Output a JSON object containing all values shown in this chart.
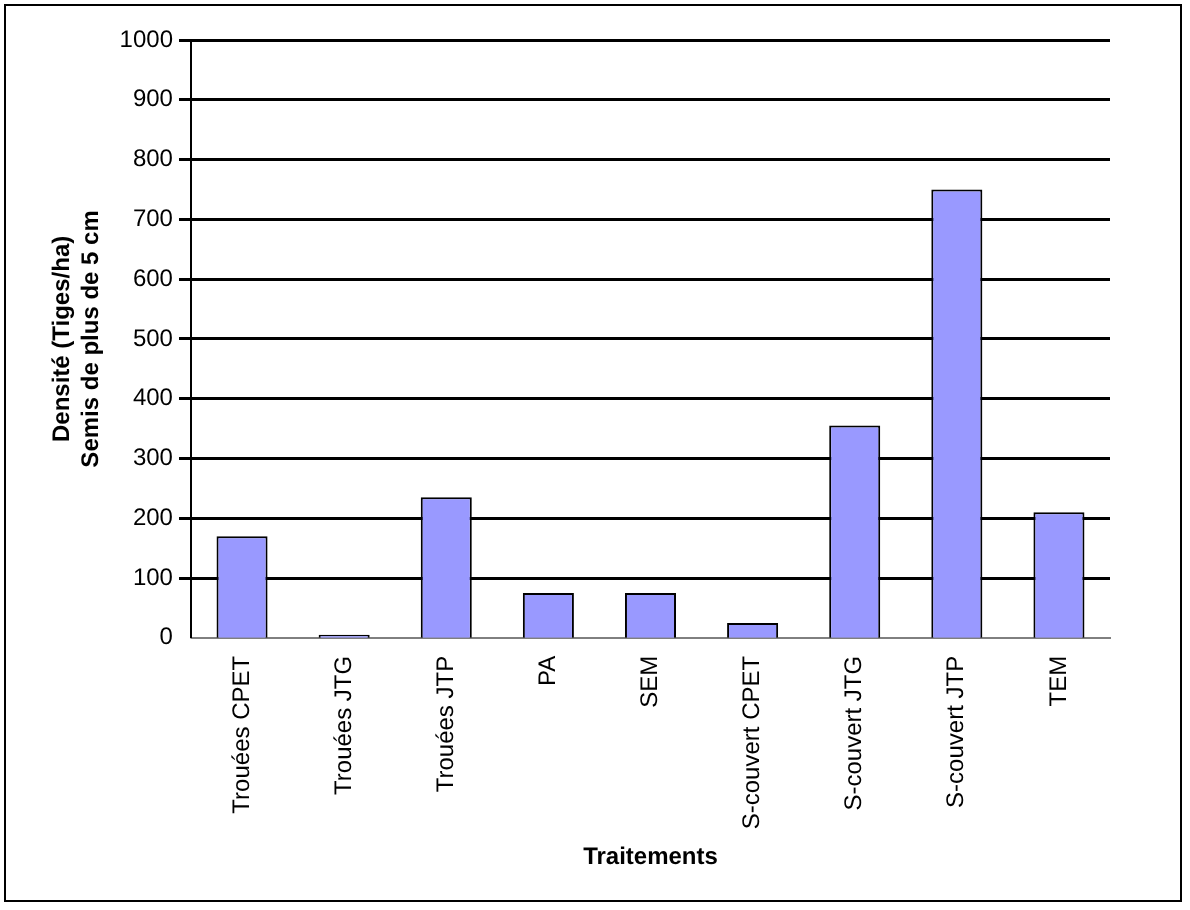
{
  "chart_data": {
    "type": "bar",
    "xlabel": "Traitements",
    "ylabel": "Densité (Tiges/ha)\nSemis de plus de 5 cm",
    "categories": [
      "Trouées CPET",
      "Trouées JTG",
      "Trouées JTP",
      "PA",
      "SEM",
      "S-couvert CPET",
      "S-couvert JTG",
      "S-couvert JTP",
      "TEM"
    ],
    "values": [
      170,
      5,
      235,
      75,
      75,
      25,
      355,
      750,
      210
    ],
    "color": "#9999ff",
    "ylim": [
      0,
      1000
    ],
    "yticks": [
      0,
      100,
      200,
      300,
      400,
      500,
      600,
      700,
      800,
      900,
      1000
    ],
    "grid": "y",
    "legend": false
  }
}
